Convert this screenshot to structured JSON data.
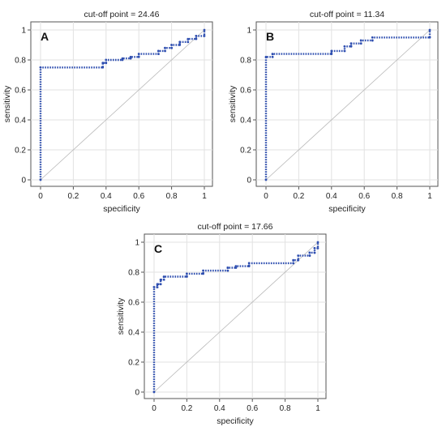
{
  "chart_data": [
    {
      "type": "line",
      "panel": "A",
      "title": "cut-off point = 24.46",
      "xlabel": "specificity",
      "ylabel": "sensitivity",
      "xlim": [
        0,
        1
      ],
      "ylim": [
        0,
        1
      ],
      "x_ticks": [
        "0",
        "0.2",
        "0.4",
        "0.6",
        "0.8",
        "1"
      ],
      "y_ticks": [
        "0",
        "0.2",
        "0.4",
        "0.6",
        "0.8",
        "1"
      ],
      "grid": true,
      "reference_line": true,
      "series": [
        {
          "color": "#2f4fb0",
          "x": [
            0,
            0,
            0.38,
            0.38,
            0.4,
            0.4,
            0.5,
            0.5,
            0.55,
            0.55,
            0.6,
            0.6,
            0.72,
            0.72,
            0.76,
            0.76,
            0.8,
            0.8,
            0.85,
            0.85,
            0.9,
            0.9,
            0.95,
            0.95,
            1.0,
            1.0
          ],
          "y": [
            0,
            0.75,
            0.75,
            0.78,
            0.78,
            0.8,
            0.8,
            0.81,
            0.81,
            0.82,
            0.82,
            0.84,
            0.84,
            0.86,
            0.86,
            0.88,
            0.88,
            0.9,
            0.9,
            0.92,
            0.92,
            0.94,
            0.94,
            0.96,
            0.96,
            1.0
          ]
        }
      ]
    },
    {
      "type": "line",
      "panel": "B",
      "title": "cut-off point = 11.34",
      "xlabel": "specificity",
      "ylabel": "sensitivity",
      "xlim": [
        0,
        1
      ],
      "ylim": [
        0,
        1
      ],
      "x_ticks": [
        "0",
        "0.2",
        "0.4",
        "0.6",
        "0.8",
        "1"
      ],
      "y_ticks": [
        "0",
        "0.2",
        "0.4",
        "0.6",
        "0.8",
        "1"
      ],
      "grid": true,
      "reference_line": true,
      "series": [
        {
          "color": "#2f4fb0",
          "x": [
            0,
            0,
            0.04,
            0.04,
            0.4,
            0.4,
            0.48,
            0.48,
            0.52,
            0.52,
            0.58,
            0.58,
            0.65,
            0.65,
            1.0,
            1.0
          ],
          "y": [
            0,
            0.82,
            0.82,
            0.84,
            0.84,
            0.86,
            0.86,
            0.89,
            0.89,
            0.91,
            0.91,
            0.93,
            0.93,
            0.95,
            0.95,
            1.0
          ]
        }
      ]
    },
    {
      "type": "line",
      "panel": "C",
      "title": "cut-off point = 17.66",
      "xlabel": "specificity",
      "ylabel": "sensitivity",
      "xlim": [
        0,
        1
      ],
      "ylim": [
        0,
        1
      ],
      "x_ticks": [
        "0",
        "0.2",
        "0.4",
        "0.6",
        "0.8",
        "1"
      ],
      "y_ticks": [
        "0",
        "0.2",
        "0.4",
        "0.6",
        "0.8",
        "1"
      ],
      "grid": true,
      "reference_line": true,
      "series": [
        {
          "color": "#2f4fb0",
          "x": [
            0,
            0,
            0.02,
            0.02,
            0.04,
            0.04,
            0.06,
            0.06,
            0.2,
            0.2,
            0.3,
            0.3,
            0.45,
            0.45,
            0.5,
            0.5,
            0.58,
            0.58,
            0.85,
            0.85,
            0.88,
            0.88,
            0.95,
            0.95,
            0.98,
            0.98,
            1.0,
            1.0
          ],
          "y": [
            0,
            0.7,
            0.7,
            0.72,
            0.72,
            0.75,
            0.75,
            0.77,
            0.77,
            0.79,
            0.79,
            0.81,
            0.81,
            0.83,
            0.83,
            0.84,
            0.84,
            0.86,
            0.86,
            0.88,
            0.88,
            0.91,
            0.91,
            0.93,
            0.93,
            0.96,
            0.96,
            1.0
          ]
        }
      ]
    }
  ]
}
